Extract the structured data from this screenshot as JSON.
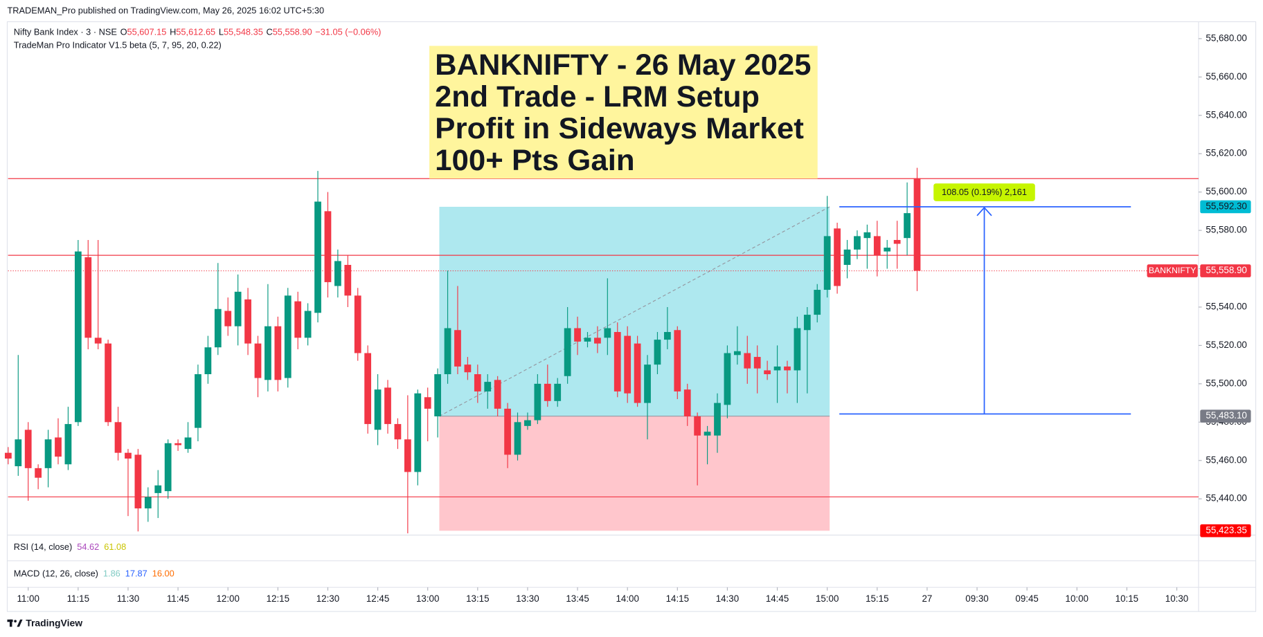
{
  "chart_data": {
    "type": "candlestick",
    "header": "TRADEMAN_Pro published on TradingView.com, May 26, 2025 16:02 UTC+5:30",
    "legend": {
      "symbol": "Nifty Bank Index · 3 · NSE",
      "o_label": "O",
      "open": "55,607.15",
      "h_label": "H",
      "high": "55,612.65",
      "l_label": "L",
      "low": "55,548.35",
      "c_label": "C",
      "close": "55,558.90",
      "change": "−31.05 (−0.06%)",
      "indicator": "TradeMan Pro Indicator V1.5 beta (5, 7, 95, 20, 0.22)"
    },
    "annotation": [
      "BANKNIFTY - 26 May 2025",
      "2nd Trade - LRM Setup",
      "Profit in Sideways Market",
      "100+ Pts Gain"
    ],
    "up_color": "#089981",
    "down_color": "#f23645",
    "categories": [
      null,
      null,
      "11:00",
      null,
      null,
      null,
      null,
      "11:15",
      null,
      null,
      null,
      null,
      "11:30",
      null,
      null,
      null,
      null,
      "11:45",
      null,
      null,
      null,
      null,
      "12:00",
      null,
      null,
      null,
      null,
      "12:15",
      null,
      null,
      null,
      null,
      "12:30",
      null,
      null,
      null,
      null,
      "12:45",
      null,
      null,
      null,
      null,
      "13:00",
      null,
      null,
      null,
      null,
      "13:15",
      null,
      null,
      null,
      null,
      "13:30",
      null,
      null,
      null,
      null,
      "13:45",
      null,
      null,
      null,
      null,
      "14:00",
      null,
      null,
      null,
      null,
      "14:15",
      null,
      null,
      null,
      null,
      "14:30",
      null,
      null,
      null,
      null,
      "14:45",
      null,
      null,
      null,
      null,
      "15:00",
      null,
      null,
      null,
      null,
      "15:15",
      null,
      null,
      null,
      null,
      "27",
      null,
      null,
      null,
      null,
      "09:30",
      null,
      null,
      null,
      null,
      "09:45",
      null,
      null,
      null,
      null,
      "10:00",
      null,
      null,
      null,
      null,
      "10:15",
      null,
      null,
      null,
      null,
      "10:30"
    ],
    "open": [
      55464,
      55457,
      55476,
      55456,
      55456,
      55472,
      55458,
      55480,
      55566,
      55524,
      55521,
      55480,
      55464,
      55463,
      55435,
      55443,
      55444,
      55469,
      55466,
      55477,
      55505,
      55519,
      55538,
      55530,
      55544,
      55521,
      55502,
      55530,
      55503,
      55543,
      55524,
      55537,
      55590,
      55551,
      55562,
      55546,
      55516,
      55476,
      55498,
      55479,
      55471,
      55454,
      55493,
      55483,
      55505,
      55528,
      55510,
      55505,
      55496,
      55502,
      55487,
      55463,
      55478,
      55481,
      55500,
      55491,
      55504,
      55529,
      55522,
      55524,
      55524,
      55527,
      55525,
      55521,
      55490,
      55510,
      55523,
      55528,
      55497,
      55483,
      55473,
      55473,
      55489,
      55515,
      55516,
      55514,
      55507,
      55507,
      55509,
      55507,
      55528,
      55536,
      55549,
      55581,
      55562,
      55570,
      55576,
      55577,
      55569,
      55575,
      55576,
      55607.15,
      null,
      null,
      null,
      null,
      null,
      null,
      null,
      null,
      null,
      null,
      null,
      null,
      null,
      null,
      null,
      null,
      null,
      null,
      null,
      null,
      null,
      null,
      null,
      null,
      null,
      null
    ],
    "high": [
      55467,
      55515,
      55480,
      55458,
      55476,
      55482,
      55488,
      55575,
      55575,
      55575,
      55523,
      55488,
      55466,
      55466,
      55446,
      55455,
      55471,
      55471,
      55480,
      55510,
      55525,
      55563,
      55545,
      55557,
      55550,
      55525,
      55552,
      55535,
      55550,
      55548,
      55542,
      55611,
      55600,
      55570,
      55567,
      55550,
      55520,
      55505,
      55502,
      55482,
      55494,
      55497,
      55498,
      55508,
      55559,
      55551,
      55514,
      55510,
      55505,
      55504,
      55490,
      55485,
      55485,
      55505,
      55510,
      55503,
      55540,
      55535,
      55527,
      55530,
      55555,
      55532,
      55530,
      55525,
      55515,
      55527,
      55540,
      55530,
      55500,
      55485,
      55478,
      55495,
      55520,
      55530,
      55525,
      55520,
      55512,
      55520,
      55512,
      55535,
      55540,
      55552,
      55598,
      55584,
      55575,
      55580,
      55583,
      55585,
      55575,
      55585,
      55605,
      55612.65,
      null,
      null,
      null,
      null,
      null,
      null,
      null,
      null,
      null,
      null,
      null,
      null,
      null,
      null,
      null,
      null,
      null,
      null,
      null,
      null,
      null,
      null,
      null,
      null,
      null,
      null
    ],
    "low": [
      55458,
      55452,
      55439,
      55445,
      55446,
      55458,
      55455,
      55478,
      55518,
      55518,
      55478,
      55460,
      55431,
      55423,
      55428,
      55430,
      55440,
      55465,
      55464,
      55470,
      55500,
      55515,
      55525,
      55520,
      55515,
      55493,
      55496,
      55496,
      55498,
      55518,
      55520,
      55532,
      55545,
      55545,
      55540,
      55512,
      55474,
      55468,
      55474,
      55466,
      55422,
      55447,
      55470,
      55472,
      55500,
      55505,
      55502,
      55490,
      55487,
      55483,
      55456,
      55460,
      55476,
      55479,
      55488,
      55488,
      55500,
      55515,
      55519,
      55516,
      55515,
      55493,
      55490,
      55488,
      55471,
      55505,
      55518,
      55492,
      55478,
      55447,
      55458,
      55464,
      55482,
      55510,
      55500,
      55495,
      55502,
      55490,
      55495,
      55490,
      55495,
      55532,
      55545,
      55547,
      55555,
      55565,
      55560,
      55556,
      55560,
      55560,
      55567,
      55548.35,
      null,
      null,
      null,
      null,
      null,
      null,
      null,
      null,
      null,
      null,
      null,
      null,
      null,
      null,
      null,
      null,
      null,
      null,
      null,
      null,
      null,
      null,
      null,
      null,
      null,
      null
    ],
    "close": [
      55461,
      55471,
      55456,
      55451,
      55471,
      55462,
      55479,
      55569,
      55524,
      55521,
      55480,
      55464,
      55461,
      55435,
      55441,
      55447,
      55469,
      55468,
      55472,
      55505,
      55519,
      55539,
      55530,
      55548,
      55521,
      55503,
      55530,
      55502,
      55546,
      55524,
      55538,
      55595,
      55553,
      55564,
      55546,
      55516,
      55479,
      55497,
      55479,
      55471,
      55454,
      55495,
      55487,
      55505,
      55529,
      55509,
      55506,
      55496,
      55501,
      55487,
      55463,
      55480,
      55481,
      55500,
      55491,
      55500,
      55529,
      55522,
      55524,
      55521,
      55529,
      55496,
      55495,
      55490,
      55510,
      55523,
      55527,
      55496,
      55483,
      55473,
      55475,
      55490,
      55516,
      55517,
      55508,
      55508,
      55505,
      55509,
      55507,
      55529,
      55536,
      55549,
      55577,
      55551,
      55570,
      55577,
      55579,
      55567,
      55571,
      55573,
      55589,
      55558.9,
      null,
      null,
      null,
      null,
      null,
      null,
      null,
      null,
      null,
      null,
      null,
      null,
      null,
      null,
      null,
      null,
      null,
      null,
      null,
      null,
      null,
      null,
      null,
      null,
      null,
      null
    ],
    "ylim": [
      55421.1,
      55688.4
    ],
    "yticks": [
      {
        "value": 55440,
        "label": "55,440.00"
      },
      {
        "value": 55460,
        "label": "55,460.00"
      },
      {
        "value": 55480,
        "label": "55,480.00"
      },
      {
        "value": 55500,
        "label": "55,500.00"
      },
      {
        "value": 55520,
        "label": "55,520.00"
      },
      {
        "value": 55540,
        "label": "55,540.00"
      },
      {
        "value": 55560,
        "label": "55,560.00"
      },
      {
        "value": 55580,
        "label": "55,580.00"
      },
      {
        "value": 55600,
        "label": "55,600.00"
      },
      {
        "value": 55620,
        "label": "55,620.00"
      },
      {
        "value": 55640,
        "label": "55,640.00"
      },
      {
        "value": 55660,
        "label": "55,660.00"
      },
      {
        "value": 55680,
        "label": "55,680.00"
      }
    ],
    "hlines": {
      "color": "#f23645",
      "values": [
        55607,
        55567,
        55441
      ]
    },
    "last_price": {
      "symbol": "BANKNIFTY",
      "value": 55558.9,
      "label": "55,558.90"
    },
    "position": {
      "target": {
        "value": 55592.3,
        "label": "55,592.30"
      },
      "entry": {
        "value": 55483.1,
        "label": "55,483.10"
      },
      "stop": {
        "value": 55423.35,
        "label": "55,423.35"
      }
    },
    "measure": {
      "from": 55484.25,
      "to": 55592.3,
      "label": "108.05 (0.19%) 2,161"
    },
    "rsi": {
      "name": "RSI (14, close)",
      "values": [
        "54.62",
        "61.08"
      ]
    },
    "macd": {
      "name": "MACD (12, 26, close)",
      "values": [
        "1.86",
        "17.87",
        "16.00"
      ]
    },
    "footer": "TradingView"
  }
}
